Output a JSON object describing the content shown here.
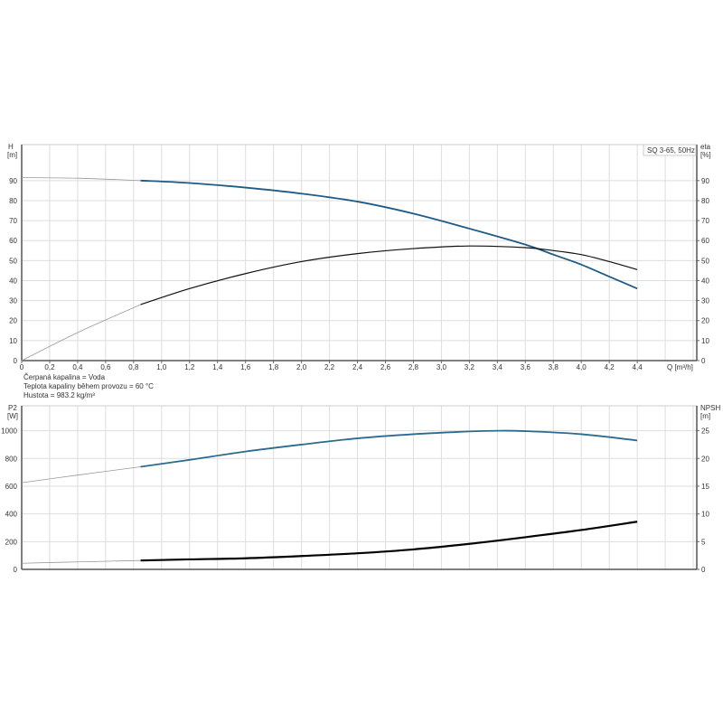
{
  "chart_data": [
    {
      "type": "line",
      "legend": "SQ 3-65, 50Hz",
      "legend_placement": "top-right",
      "xlabel": "Q [m³/h]",
      "ylabel_left": [
        "H",
        "[m]"
      ],
      "ylabel_right": [
        "eta",
        "[%]"
      ],
      "xlim": [
        0,
        4.82
      ],
      "ylim": [
        0,
        108
      ],
      "grid": true,
      "x_ticks": [
        "0",
        "0,2",
        "0,4",
        "0,6",
        "0,8",
        "1,0",
        "1,2",
        "1,4",
        "1,6",
        "1,8",
        "2,0",
        "2,2",
        "2,4",
        "2,6",
        "2,8",
        "3,0",
        "3,2",
        "3,4",
        "3,6",
        "3,8",
        "4,0",
        "4,2",
        "4,4"
      ],
      "y_ticks": [
        "0",
        "10",
        "20",
        "30",
        "40",
        "50",
        "60",
        "70",
        "80",
        "90"
      ],
      "operating_range_start_q": 0.85,
      "series": [
        {
          "key": "H",
          "color": "#1f5b85",
          "x": [
            0,
            0.4,
            0.85,
            1.2,
            1.6,
            2.0,
            2.4,
            2.8,
            3.2,
            3.6,
            3.8,
            4.0,
            4.2,
            4.4
          ],
          "y": [
            91.5,
            91.2,
            90,
            88.8,
            86.5,
            83.5,
            79.5,
            73.5,
            66,
            58,
            53,
            48,
            42,
            36
          ]
        },
        {
          "key": "eta",
          "color": "#111111",
          "x": [
            0,
            0.4,
            0.85,
            1.2,
            1.6,
            2.0,
            2.4,
            2.8,
            3.2,
            3.6,
            3.8,
            4.0,
            4.2,
            4.4
          ],
          "y": [
            0,
            14,
            28,
            36,
            43.5,
            49.5,
            53.5,
            56,
            57.3,
            56.5,
            55,
            53,
            49.5,
            45.5
          ]
        }
      ]
    },
    {
      "type": "line",
      "ylabel_left": [
        "P2",
        "[W]"
      ],
      "ylabel_right": [
        "NPSH",
        "[m]"
      ],
      "xlim": [
        0,
        4.82
      ],
      "ylim": [
        0,
        1180
      ],
      "ylim_right": [
        0,
        29.5
      ],
      "grid": true,
      "y_ticks": [
        "0",
        "200",
        "400",
        "600",
        "800",
        "1000"
      ],
      "y_ticks_right": [
        "0",
        "5",
        "10",
        "15",
        "20",
        "25"
      ],
      "operating_range_start_q": 0.85,
      "series": [
        {
          "key": "P2",
          "axis": "left",
          "color": "#2b6b8f",
          "x": [
            0,
            0.4,
            0.85,
            1.2,
            1.6,
            2.0,
            2.4,
            2.8,
            3.2,
            3.4,
            3.6,
            4.0,
            4.4
          ],
          "y": [
            625,
            680,
            740,
            790,
            850,
            900,
            945,
            975,
            995,
            1000,
            997,
            975,
            930
          ]
        },
        {
          "key": "NPSH",
          "axis": "right",
          "color": "#000000",
          "x": [
            0,
            0.4,
            0.85,
            1.2,
            1.6,
            2.0,
            2.4,
            2.8,
            3.2,
            3.6,
            4.0,
            4.4
          ],
          "y": [
            1.1,
            1.35,
            1.6,
            1.8,
            2.0,
            2.4,
            2.9,
            3.6,
            4.6,
            5.8,
            7.1,
            8.6
          ]
        }
      ]
    }
  ],
  "fluid_info": [
    "Čerpaná kapalina = Voda",
    "Teplota kapaliny během provozu = 60 °C",
    "Hustota = 983.2 kg/m³"
  ]
}
